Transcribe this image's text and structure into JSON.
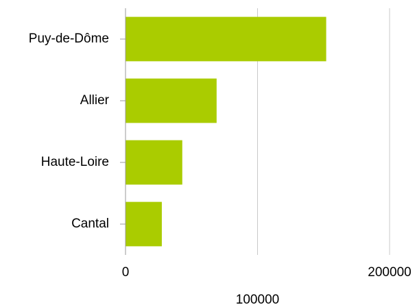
{
  "chart_data": {
    "type": "bar",
    "orientation": "horizontal",
    "categories": [
      "Puy-de-Dôme",
      "Allier",
      "Haute-Loire",
      "Cantal"
    ],
    "values": [
      152000,
      69000,
      43000,
      27500
    ],
    "color": "#aacc00",
    "xlim": [
      0,
      200000
    ],
    "xticks": [
      0,
      100000,
      200000
    ],
    "grid": true
  }
}
